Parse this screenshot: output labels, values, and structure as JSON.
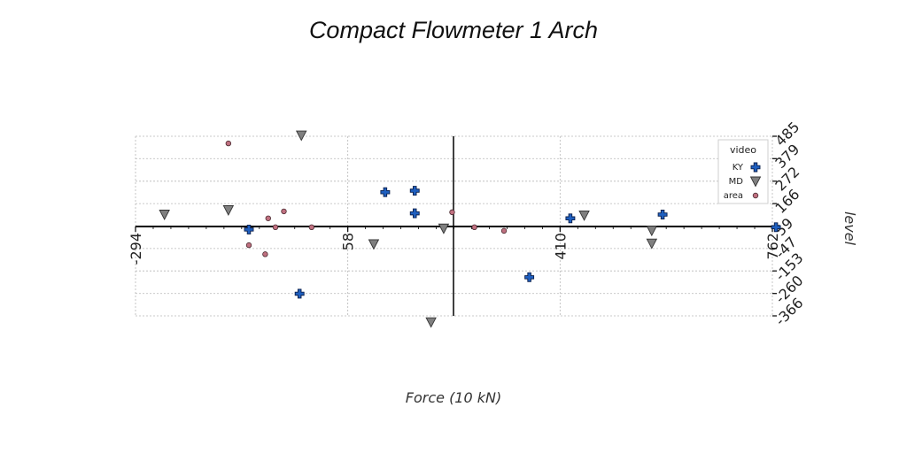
{
  "chart_data": {
    "type": "scatter",
    "title": "Compact Flowmeter 1 Arch",
    "xlabel": "Force (10 kN)",
    "ylabel": "level",
    "xlim": [
      -294,
      762
    ],
    "ylim": [
      -366,
      485
    ],
    "x_ticks": [
      -294,
      58,
      410,
      762
    ],
    "y_ticks": [
      485,
      379,
      272,
      166,
      59,
      -47,
      -153,
      -260,
      -366
    ],
    "grid": true,
    "legend": {
      "title": "video",
      "placement": "top-right"
    },
    "series": [
      {
        "name": "KY",
        "marker": "plus",
        "color": "#1f5fbf",
        "points": [
          [
            -106,
            43
          ],
          [
            120,
            220
          ],
          [
            169,
            227
          ],
          [
            169,
            120
          ],
          [
            -22,
            -261
          ],
          [
            427,
            96
          ],
          [
            580,
            114
          ],
          [
            768,
            54
          ],
          [
            359,
            -183
          ]
        ]
      },
      {
        "name": "MD",
        "marker": "triangle-down",
        "color": "#808080",
        "points": [
          [
            -246,
            114
          ],
          [
            -140,
            135
          ],
          [
            -19,
            489
          ],
          [
            101,
            -26
          ],
          [
            217,
            48
          ],
          [
            450,
            110
          ],
          [
            562,
            38
          ],
          [
            562,
            -23
          ],
          [
            196,
            -396
          ]
        ]
      },
      {
        "name": "area",
        "marker": "circle",
        "color": "#c07080",
        "points": [
          [
            -140,
            451
          ],
          [
            -74,
            96
          ],
          [
            -48,
            129
          ],
          [
            -62,
            54
          ],
          [
            -106,
            -31
          ],
          [
            -2,
            54
          ],
          [
            -79,
            -74
          ],
          [
            231,
            125
          ],
          [
            268,
            54
          ],
          [
            317,
            37
          ]
        ]
      }
    ]
  }
}
